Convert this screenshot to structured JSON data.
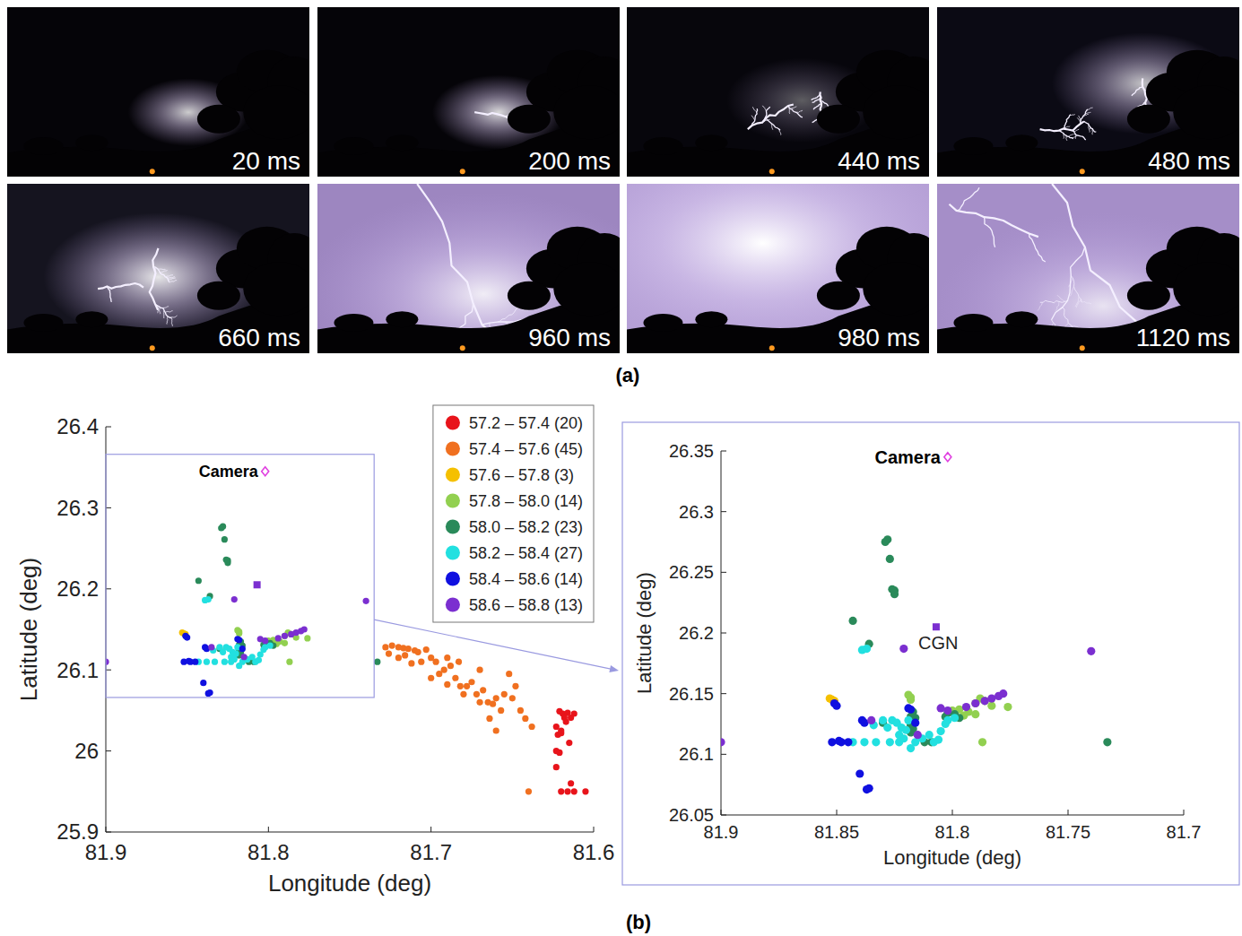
{
  "figure": {
    "panel_a": {
      "label": "(a)",
      "frames": [
        "20 ms",
        "200 ms",
        "440 ms",
        "480 ms",
        "660 ms",
        "960 ms",
        "980 ms",
        "1120 ms"
      ]
    },
    "panel_b_label": "(b)"
  },
  "chart_data": [
    {
      "type": "scatter",
      "xlabel": "Longitude (deg)",
      "ylabel": "Latitude (deg)",
      "xlim": [
        81.9,
        81.6
      ],
      "xticks": [
        81.9,
        81.8,
        81.7,
        81.6
      ],
      "ylim": [
        25.9,
        26.4
      ],
      "yticks": [
        25.9,
        26,
        26.1,
        26.2,
        26.3,
        26.4
      ],
      "legend": "top-right",
      "marker": "circle",
      "zoom_box": {
        "xlim": [
          81.9,
          81.735
        ],
        "ylim": [
          26.066,
          26.366
        ]
      },
      "annotations": [
        {
          "text": "Camera",
          "x": 81.802,
          "y": 26.345,
          "marker": "diamond",
          "color": "#e040e0"
        },
        {
          "x": 81.807,
          "y": 26.205,
          "marker": "square",
          "color": "#7b2fd0"
        }
      ],
      "series": [
        {
          "name": "57.2 – 57.4 (20)",
          "color": "#e8141b",
          "x": [
            81.621,
            81.619,
            81.616,
            81.612,
            81.623,
            81.622,
            81.62,
            81.617,
            81.623,
            81.621,
            81.623,
            81.614,
            81.612,
            81.616,
            81.62,
            81.605,
            81.618,
            81.614,
            81.62,
            81.615
          ],
          "values": [
            26.049,
            26.046,
            26.047,
            26.046,
            26.03,
            26.02,
            26.022,
            26.036,
            26,
            25.998,
            25.98,
            25.96,
            25.95,
            25.95,
            25.95,
            25.95,
            26.041,
            26.041,
            26.025,
            26.01
          ]
        },
        {
          "name": "57.4 – 57.6 (45)",
          "color": "#f07020",
          "x": [
            81.728,
            81.724,
            81.72,
            81.717,
            81.714,
            81.71,
            81.726,
            81.72,
            81.716,
            81.708,
            81.703,
            81.7,
            81.697,
            81.706,
            81.712,
            81.692,
            81.688,
            81.685,
            81.69,
            81.682,
            81.678,
            81.675,
            81.672,
            81.668,
            81.665,
            81.662,
            81.66,
            81.66,
            81.652,
            81.65,
            81.645,
            81.638,
            81.64,
            81.655,
            81.67,
            81.695,
            81.68,
            81.67,
            81.664,
            81.657,
            81.648,
            81.642,
            81.7,
            81.69,
            81.683
          ],
          "values": [
            26.128,
            26.13,
            26.128,
            26.127,
            26.126,
            26.124,
            26.12,
            26.115,
            26.118,
            26.122,
            26.125,
            26.115,
            26.11,
            26.11,
            26.108,
            26.1,
            26.105,
            26.09,
            26.082,
            26.08,
            26.08,
            26.085,
            26.07,
            26.075,
            26.06,
            26.058,
            26.065,
            26.025,
            26.095,
            26.065,
            26.05,
            26.03,
            25.95,
            26.07,
            26.1,
            26.095,
            26.07,
            26.06,
            26.04,
            26.05,
            26.08,
            26.04,
            26.09,
            26.115,
            26.11
          ]
        },
        {
          "name": "57.6 – 57.8 (3)",
          "color": "#f5c000",
          "x": [
            81.853,
            81.852,
            81.851
          ],
          "values": [
            26.146,
            26.145,
            26.144
          ]
        },
        {
          "name": "57.8 – 58.0 (14)",
          "color": "#92d050",
          "x": [
            81.819,
            81.818,
            81.8,
            81.797,
            81.79,
            81.79,
            81.787,
            81.776,
            81.786,
            81.793,
            81.818,
            81.783,
            81.795,
            81.788
          ],
          "values": [
            26.149,
            26.145,
            26.136,
            26.137,
            26.142,
            26.133,
            26.11,
            26.139,
            26.144,
            26.135,
            26.147,
            26.14,
            26.132,
            26.146
          ]
        },
        {
          "name": "58.0 – 58.2 (23)",
          "color": "#2a8a5a",
          "x": [
            81.828,
            81.827,
            81.825,
            81.825,
            81.843,
            81.836,
            81.817,
            81.817,
            81.817,
            81.818,
            81.799,
            81.797,
            81.803,
            81.809,
            81.812,
            81.733,
            81.83,
            81.818,
            81.802,
            81.816,
            81.829,
            81.826,
            81.818
          ],
          "values": [
            26.277,
            26.261,
            26.235,
            26.232,
            26.21,
            26.191,
            26.135,
            26.128,
            26.121,
            26.124,
            26.133,
            26.13,
            26.131,
            26.11,
            26.11,
            26.11,
            26.126,
            26.118,
            26.134,
            26.13,
            26.275,
            26.236,
            26.131
          ]
        },
        {
          "name": "58.2 – 58.4 (27)",
          "color": "#22e0e0",
          "x": [
            81.839,
            81.837,
            81.843,
            81.838,
            81.833,
            81.827,
            81.823,
            81.816,
            81.808,
            81.805,
            81.802,
            81.83,
            81.826,
            81.822,
            81.819,
            81.823,
            81.813,
            81.81,
            81.806,
            81.828,
            81.824,
            81.818,
            81.82,
            81.799,
            81.803,
            81.821,
            81.834
          ],
          "values": [
            26.186,
            26.187,
            26.11,
            26.11,
            26.11,
            26.11,
            26.11,
            26.11,
            26.11,
            26.119,
            26.128,
            26.128,
            26.128,
            26.122,
            26.128,
            26.116,
            26.113,
            26.116,
            26.112,
            26.122,
            26.126,
            26.105,
            26.12,
            26.13,
            26.125,
            26.113,
            26.124
          ]
        },
        {
          "name": "58.4 – 58.6 (14)",
          "color": "#1010e0",
          "x": [
            81.852,
            81.848,
            81.851,
            81.839,
            81.84,
            81.837,
            81.819,
            81.845,
            81.816,
            81.85,
            81.838,
            81.836,
            81.849,
            81.818
          ],
          "values": [
            26.11,
            26.11,
            26.142,
            26.128,
            26.084,
            26.071,
            26.138,
            26.11,
            26.126,
            26.14,
            26.126,
            26.072,
            26.111,
            26.137
          ]
        },
        {
          "name": "58.6 – 58.8 (13)",
          "color": "#7b2fd0",
          "x": [
            81.9,
            81.835,
            81.815,
            81.805,
            81.794,
            81.79,
            81.786,
            81.783,
            81.78,
            81.778,
            81.74,
            81.821,
            81.802
          ],
          "values": [
            26.11,
            26.128,
            26.116,
            26.138,
            26.139,
            26.142,
            26.144,
            26.146,
            26.148,
            26.15,
            26.185,
            26.187,
            26.136
          ]
        }
      ]
    },
    {
      "type": "scatter",
      "xlabel": "Longitude (deg)",
      "ylabel": "Latitude (deg)",
      "xlim": [
        81.9,
        81.7
      ],
      "xticks": [
        81.9,
        81.85,
        81.8,
        81.75,
        81.7
      ],
      "ylim": [
        26.05,
        26.35
      ],
      "yticks": [
        26.05,
        26.1,
        26.15,
        26.2,
        26.25,
        26.3,
        26.35
      ],
      "marker": "circle",
      "annotations": [
        {
          "text": "Camera",
          "x": 81.802,
          "y": 26.345,
          "marker": "diamond",
          "color": "#e040e0"
        },
        {
          "text": "CGN",
          "x": 81.807,
          "y": 26.205,
          "marker": "square",
          "color": "#7b2fd0"
        }
      ],
      "series": [
        {
          "color": "#f5c000",
          "x": [
            81.853,
            81.852,
            81.851
          ],
          "values": [
            26.146,
            26.145,
            26.144
          ]
        },
        {
          "color": "#92d050",
          "x": [
            81.819,
            81.818,
            81.8,
            81.797,
            81.79,
            81.79,
            81.787,
            81.776,
            81.786,
            81.793,
            81.818,
            81.783,
            81.795,
            81.788
          ],
          "values": [
            26.149,
            26.145,
            26.136,
            26.137,
            26.142,
            26.133,
            26.11,
            26.139,
            26.144,
            26.135,
            26.147,
            26.14,
            26.132,
            26.146
          ]
        },
        {
          "color": "#2a8a5a",
          "x": [
            81.828,
            81.827,
            81.825,
            81.825,
            81.843,
            81.836,
            81.817,
            81.817,
            81.817,
            81.818,
            81.799,
            81.797,
            81.803,
            81.809,
            81.812,
            81.733,
            81.83,
            81.818,
            81.802,
            81.816,
            81.829,
            81.826,
            81.818
          ],
          "values": [
            26.277,
            26.261,
            26.235,
            26.232,
            26.21,
            26.191,
            26.135,
            26.128,
            26.121,
            26.124,
            26.133,
            26.13,
            26.131,
            26.11,
            26.11,
            26.11,
            26.126,
            26.118,
            26.134,
            26.13,
            26.275,
            26.236,
            26.131
          ]
        },
        {
          "color": "#22e0e0",
          "x": [
            81.839,
            81.837,
            81.843,
            81.838,
            81.833,
            81.827,
            81.823,
            81.816,
            81.808,
            81.805,
            81.802,
            81.83,
            81.826,
            81.822,
            81.819,
            81.823,
            81.813,
            81.81,
            81.806,
            81.828,
            81.824,
            81.818,
            81.82,
            81.799,
            81.803,
            81.821,
            81.834
          ],
          "values": [
            26.186,
            26.187,
            26.11,
            26.11,
            26.11,
            26.11,
            26.11,
            26.11,
            26.11,
            26.119,
            26.128,
            26.128,
            26.128,
            26.122,
            26.128,
            26.116,
            26.113,
            26.116,
            26.112,
            26.122,
            26.126,
            26.105,
            26.12,
            26.13,
            26.125,
            26.113,
            26.124
          ]
        },
        {
          "color": "#1010e0",
          "x": [
            81.852,
            81.848,
            81.851,
            81.839,
            81.84,
            81.837,
            81.819,
            81.845,
            81.816,
            81.85,
            81.838,
            81.836,
            81.849,
            81.818
          ],
          "values": [
            26.11,
            26.11,
            26.142,
            26.128,
            26.084,
            26.071,
            26.138,
            26.11,
            26.126,
            26.14,
            26.126,
            26.072,
            26.111,
            26.137
          ]
        },
        {
          "color": "#7b2fd0",
          "x": [
            81.9,
            81.835,
            81.815,
            81.805,
            81.794,
            81.79,
            81.786,
            81.783,
            81.78,
            81.778,
            81.74,
            81.821,
            81.802
          ],
          "values": [
            26.11,
            26.128,
            26.116,
            26.138,
            26.139,
            26.142,
            26.144,
            26.146,
            26.148,
            26.15,
            26.185,
            26.187,
            26.136
          ]
        }
      ]
    }
  ]
}
